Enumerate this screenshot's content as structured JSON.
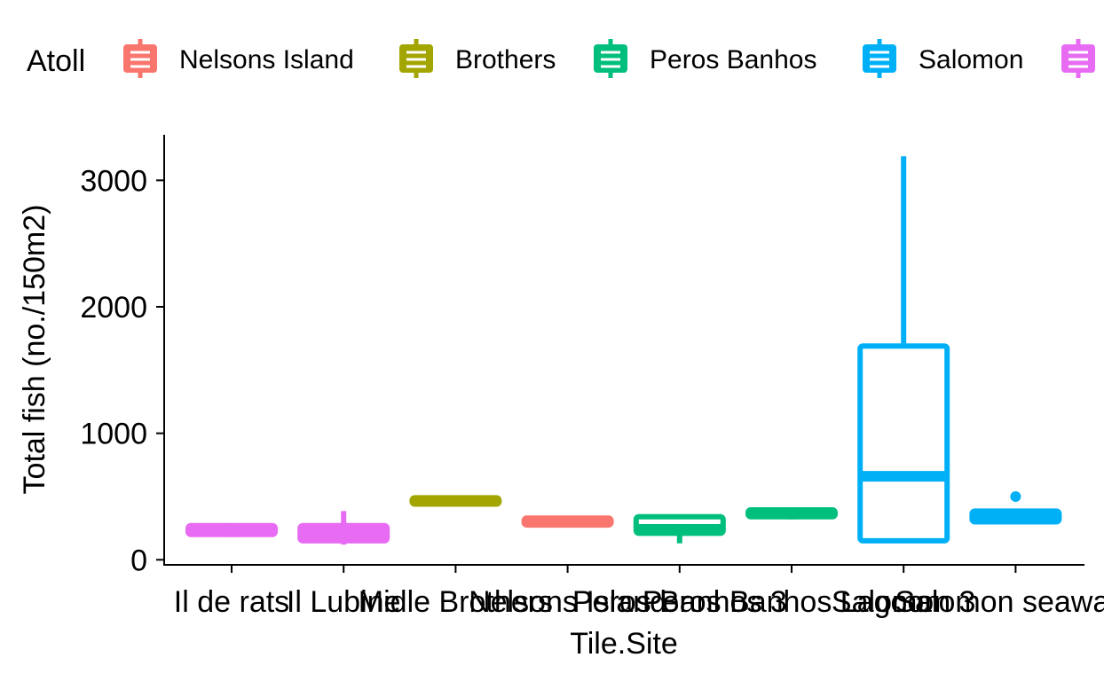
{
  "chart_data": {
    "type": "box",
    "title": "",
    "xlabel": "Tile.Site",
    "ylabel": "Total fish (no./150m2)",
    "ylim": [
      -40,
      3360
    ],
    "yticks": [
      0,
      1000,
      2000,
      3000
    ],
    "legend": {
      "title": "Atoll",
      "position": "top",
      "entries": [
        {
          "name": "Nelsons Island",
          "color": "#F8766D"
        },
        {
          "name": "Brothers",
          "color": "#A3A500"
        },
        {
          "name": "Peros Banhos",
          "color": "#00BF7D"
        },
        {
          "name": "Salomon",
          "color": "#00B0F6"
        },
        {
          "name": "",
          "color": "#E76BF3"
        }
      ]
    },
    "categories": [
      "Il de rats",
      "Il Lubine",
      "Midle Brothers",
      "Nelsons Island",
      "Peros Banhos 3",
      "Peros Banhos Lagoon",
      "Salomon 3",
      "Salomon seaward"
    ],
    "category_label_overflow": "overlapping",
    "boxes": [
      {
        "category": "Il de rats",
        "atoll_color": "#E76BF3",
        "min": 180,
        "q1": 200,
        "median": 230,
        "q3": 270,
        "max": 290,
        "outliers": []
      },
      {
        "category": "Il Lubine",
        "atoll_color": "#E76BF3",
        "min": 120,
        "q1": 150,
        "median": 210,
        "q3": 270,
        "max": 385,
        "outliers": []
      },
      {
        "category": "Midle Brothers",
        "atoll_color": "#A3A500",
        "min": 430,
        "q1": 440,
        "median": 465,
        "q3": 490,
        "max": 495,
        "outliers": []
      },
      {
        "category": "Nelsons Island",
        "atoll_color": "#F8766D",
        "min": 265,
        "q1": 275,
        "median": 305,
        "q3": 330,
        "max": 335,
        "outliers": []
      },
      {
        "category": "Peros Banhos 3",
        "atoll_color": "#00BF7D",
        "min": 130,
        "q1": 210,
        "median": 240,
        "q3": 340,
        "max": 360,
        "outliers": []
      },
      {
        "category": "Peros Banhos Lagoon",
        "atoll_color": "#00BF7D",
        "min": 320,
        "q1": 340,
        "median": 370,
        "q3": 395,
        "max": 400,
        "outliers": []
      },
      {
        "category": "Salomon 3",
        "atoll_color": "#00B0F6",
        "min": 150,
        "q1": 150,
        "median": 660,
        "q3": 1690,
        "max": 3190,
        "outliers": []
      },
      {
        "category": "Salomon seaward",
        "atoll_color": "#00B0F6",
        "min": 295,
        "q1": 300,
        "median": 330,
        "q3": 385,
        "max": 390,
        "outliers": [
          500
        ]
      }
    ]
  }
}
